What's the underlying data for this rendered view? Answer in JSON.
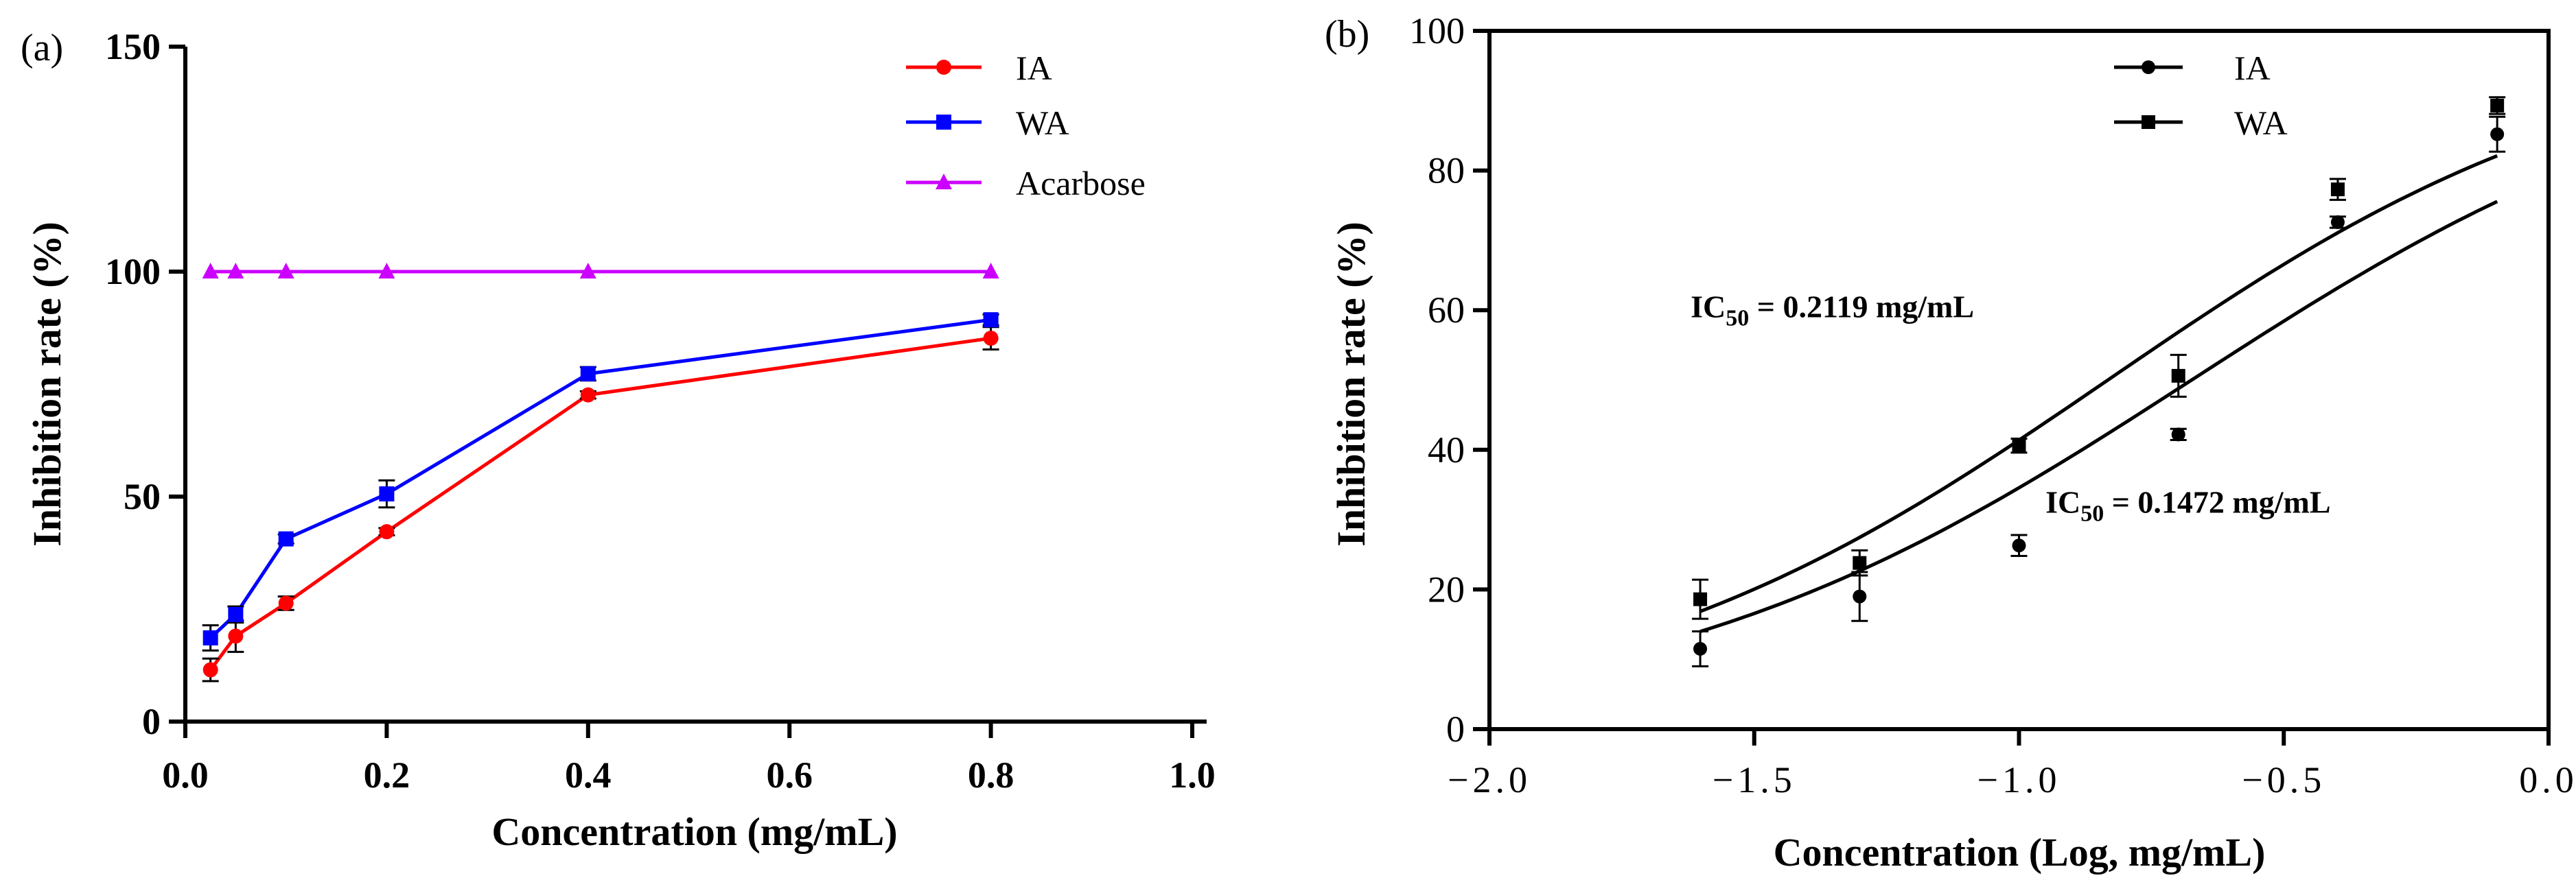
{
  "chart_data": [
    {
      "panel": "(a)",
      "type": "line",
      "xlabel": "Concentration (mg/mL)",
      "ylabel": "Inhibition rate (%)",
      "xlim": [
        0.0,
        1.0
      ],
      "ylim": [
        0,
        150
      ],
      "x_ticks": [
        "0.0",
        "0.2",
        "0.4",
        "0.6",
        "0.8",
        "1.0"
      ],
      "x_tick_values": [
        0.0,
        0.2,
        0.4,
        0.6,
        0.8,
        1.0
      ],
      "y_ticks": [
        "0",
        "50",
        "100",
        "150"
      ],
      "y_tick_values": [
        0,
        50,
        100,
        150
      ],
      "legend_position": "top-right",
      "x": [
        0.025,
        0.05,
        0.1,
        0.2,
        0.4,
        0.8
      ],
      "series": [
        {
          "name": "IA",
          "color": "#ff0000",
          "marker": "circle",
          "values": [
            11.5,
            19.0,
            26.3,
            42.2,
            72.6,
            85.2
          ],
          "errors": [
            2.5,
            3.5,
            1.5,
            0.8,
            0.8,
            2.5
          ]
        },
        {
          "name": "WA",
          "color": "#0000ff",
          "marker": "square",
          "values": [
            18.6,
            23.8,
            40.6,
            50.6,
            77.3,
            89.3
          ],
          "errors": [
            2.8,
            1.8,
            1.0,
            3.0,
            1.5,
            1.2
          ]
        },
        {
          "name": "Acarbose",
          "color": "#cc00ff",
          "marker": "triangle",
          "values": [
            100,
            100,
            100,
            100,
            100,
            100
          ],
          "errors": [
            0,
            0,
            0,
            0,
            0,
            0
          ]
        }
      ]
    },
    {
      "panel": "(b)",
      "type": "scatter",
      "xlabel": "Concentration (Log, mg/mL)",
      "ylabel": "Inhibition rate (%)",
      "xlim": [
        -2.0,
        0.0
      ],
      "ylim": [
        0,
        100
      ],
      "x_ticks": [
        "−2.0",
        "−1.5",
        "−1.0",
        "−0.5",
        "0.0"
      ],
      "x_tick_values": [
        -2.0,
        -1.5,
        -1.0,
        -0.5,
        0.0
      ],
      "y_ticks": [
        "0",
        "20",
        "40",
        "60",
        "80",
        "100"
      ],
      "y_tick_values": [
        0,
        20,
        40,
        60,
        80,
        100
      ],
      "legend_position": "top-center",
      "x": [
        -1.602,
        -1.301,
        -1.0,
        -0.699,
        -0.398,
        -0.097
      ],
      "series": [
        {
          "name": "IA",
          "color": "#000000",
          "marker": "circle",
          "values": [
            11.5,
            19.0,
            26.3,
            42.2,
            72.6,
            85.2
          ],
          "errors": [
            2.5,
            3.5,
            1.5,
            0.8,
            0.8,
            2.5
          ],
          "fit": {
            "bottom": 0,
            "top": 100,
            "log_ic50": -0.8321,
            "hill_slope": 0.9
          }
        },
        {
          "name": "WA",
          "color": "#000000",
          "marker": "square",
          "values": [
            18.6,
            23.8,
            40.6,
            50.6,
            77.3,
            89.3
          ],
          "errors": [
            2.8,
            1.8,
            1.0,
            3.0,
            1.5,
            1.2
          ],
          "fit": {
            "bottom": 0,
            "top": 100,
            "log_ic50": -0.6739,
            "hill_slope": 0.85
          }
        }
      ],
      "annotations": [
        {
          "prefix": "IC",
          "subscript": "50",
          "text": " = 0.2119 mg/mL",
          "anchor_x": -1.62,
          "anchor_y": 59
        },
        {
          "prefix": "IC",
          "subscript": "50",
          "text": " = 0.1472 mg/mL",
          "anchor_x": -0.95,
          "anchor_y": 31
        }
      ]
    }
  ]
}
